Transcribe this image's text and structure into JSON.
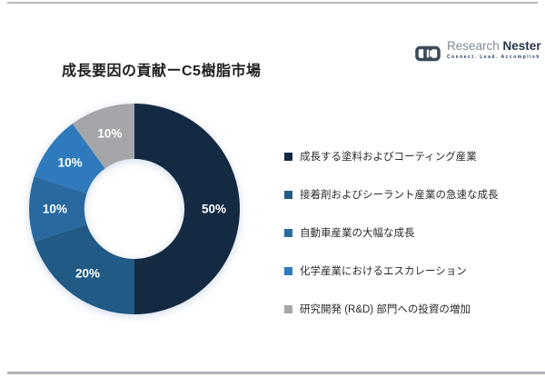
{
  "header": {
    "title": "成長要因の貢献ーC5樹脂市場"
  },
  "logo": {
    "brand_light": "Research",
    "brand_bold": "Nester",
    "tagline": "Connect. Lead. Accomplish"
  },
  "chart_data": {
    "type": "pie",
    "subtype": "donut",
    "title": "成長要因の貢献ーC5樹脂市場",
    "categories": [
      "成長する塗料およびコーティング産業",
      "接着剤およびシーラント産業の急速な成長",
      "自動車産業の大幅な成長",
      "化学産業におけるエスカレーション",
      "研究開発 (R&D) 部門への投資の増加"
    ],
    "values": [
      50,
      20,
      10,
      10,
      10
    ],
    "data_labels": [
      "50%",
      "20%",
      "10%",
      "10%",
      "10%"
    ],
    "colors": [
      "#142a42",
      "#205a85",
      "#2a69a0",
      "#2e7abc",
      "#a5a6a9"
    ],
    "label_color": "#ffffff",
    "start_angle_deg": 0,
    "direction": "clockwise",
    "donut_hole_ratio": 0.475,
    "legend_position": "right"
  }
}
